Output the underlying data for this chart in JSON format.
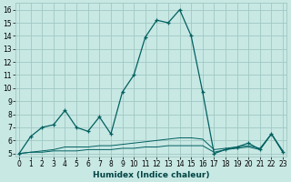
{
  "xlabel": "Humidex (Indice chaleur)",
  "background_color": "#c8e8e4",
  "grid_color": "#a0c8c4",
  "line_color": "#006060",
  "x": [
    0,
    1,
    2,
    3,
    4,
    5,
    6,
    7,
    8,
    9,
    10,
    11,
    12,
    13,
    14,
    15,
    16,
    17,
    18,
    19,
    20,
    21,
    22,
    23
  ],
  "y_main": [
    5.0,
    6.3,
    7.0,
    7.2,
    8.3,
    7.0,
    6.7,
    7.8,
    6.5,
    9.7,
    11.0,
    13.9,
    15.2,
    15.0,
    16.0,
    14.0,
    9.7,
    5.0,
    5.3,
    5.5,
    5.8,
    5.3,
    6.5,
    5.1
  ],
  "y_mid": [
    5.0,
    5.1,
    5.2,
    5.3,
    5.5,
    5.5,
    5.5,
    5.6,
    5.6,
    5.7,
    5.8,
    5.9,
    6.0,
    6.1,
    6.2,
    6.2,
    6.1,
    5.3,
    5.4,
    5.5,
    5.6,
    5.4,
    6.5,
    5.2
  ],
  "y_low": [
    5.0,
    5.1,
    5.1,
    5.2,
    5.2,
    5.2,
    5.3,
    5.3,
    5.3,
    5.4,
    5.4,
    5.5,
    5.5,
    5.6,
    5.6,
    5.6,
    5.6,
    5.1,
    5.3,
    5.4,
    5.5,
    5.3,
    6.5,
    5.1
  ],
  "ylim": [
    4.8,
    16.5
  ],
  "yticks": [
    5,
    6,
    7,
    8,
    9,
    10,
    11,
    12,
    13,
    14,
    15,
    16
  ],
  "xticks": [
    0,
    1,
    2,
    3,
    4,
    5,
    6,
    7,
    8,
    9,
    10,
    11,
    12,
    13,
    14,
    15,
    16,
    17,
    18,
    19,
    20,
    21,
    22,
    23
  ],
  "xlim": [
    -0.3,
    23.3
  ]
}
